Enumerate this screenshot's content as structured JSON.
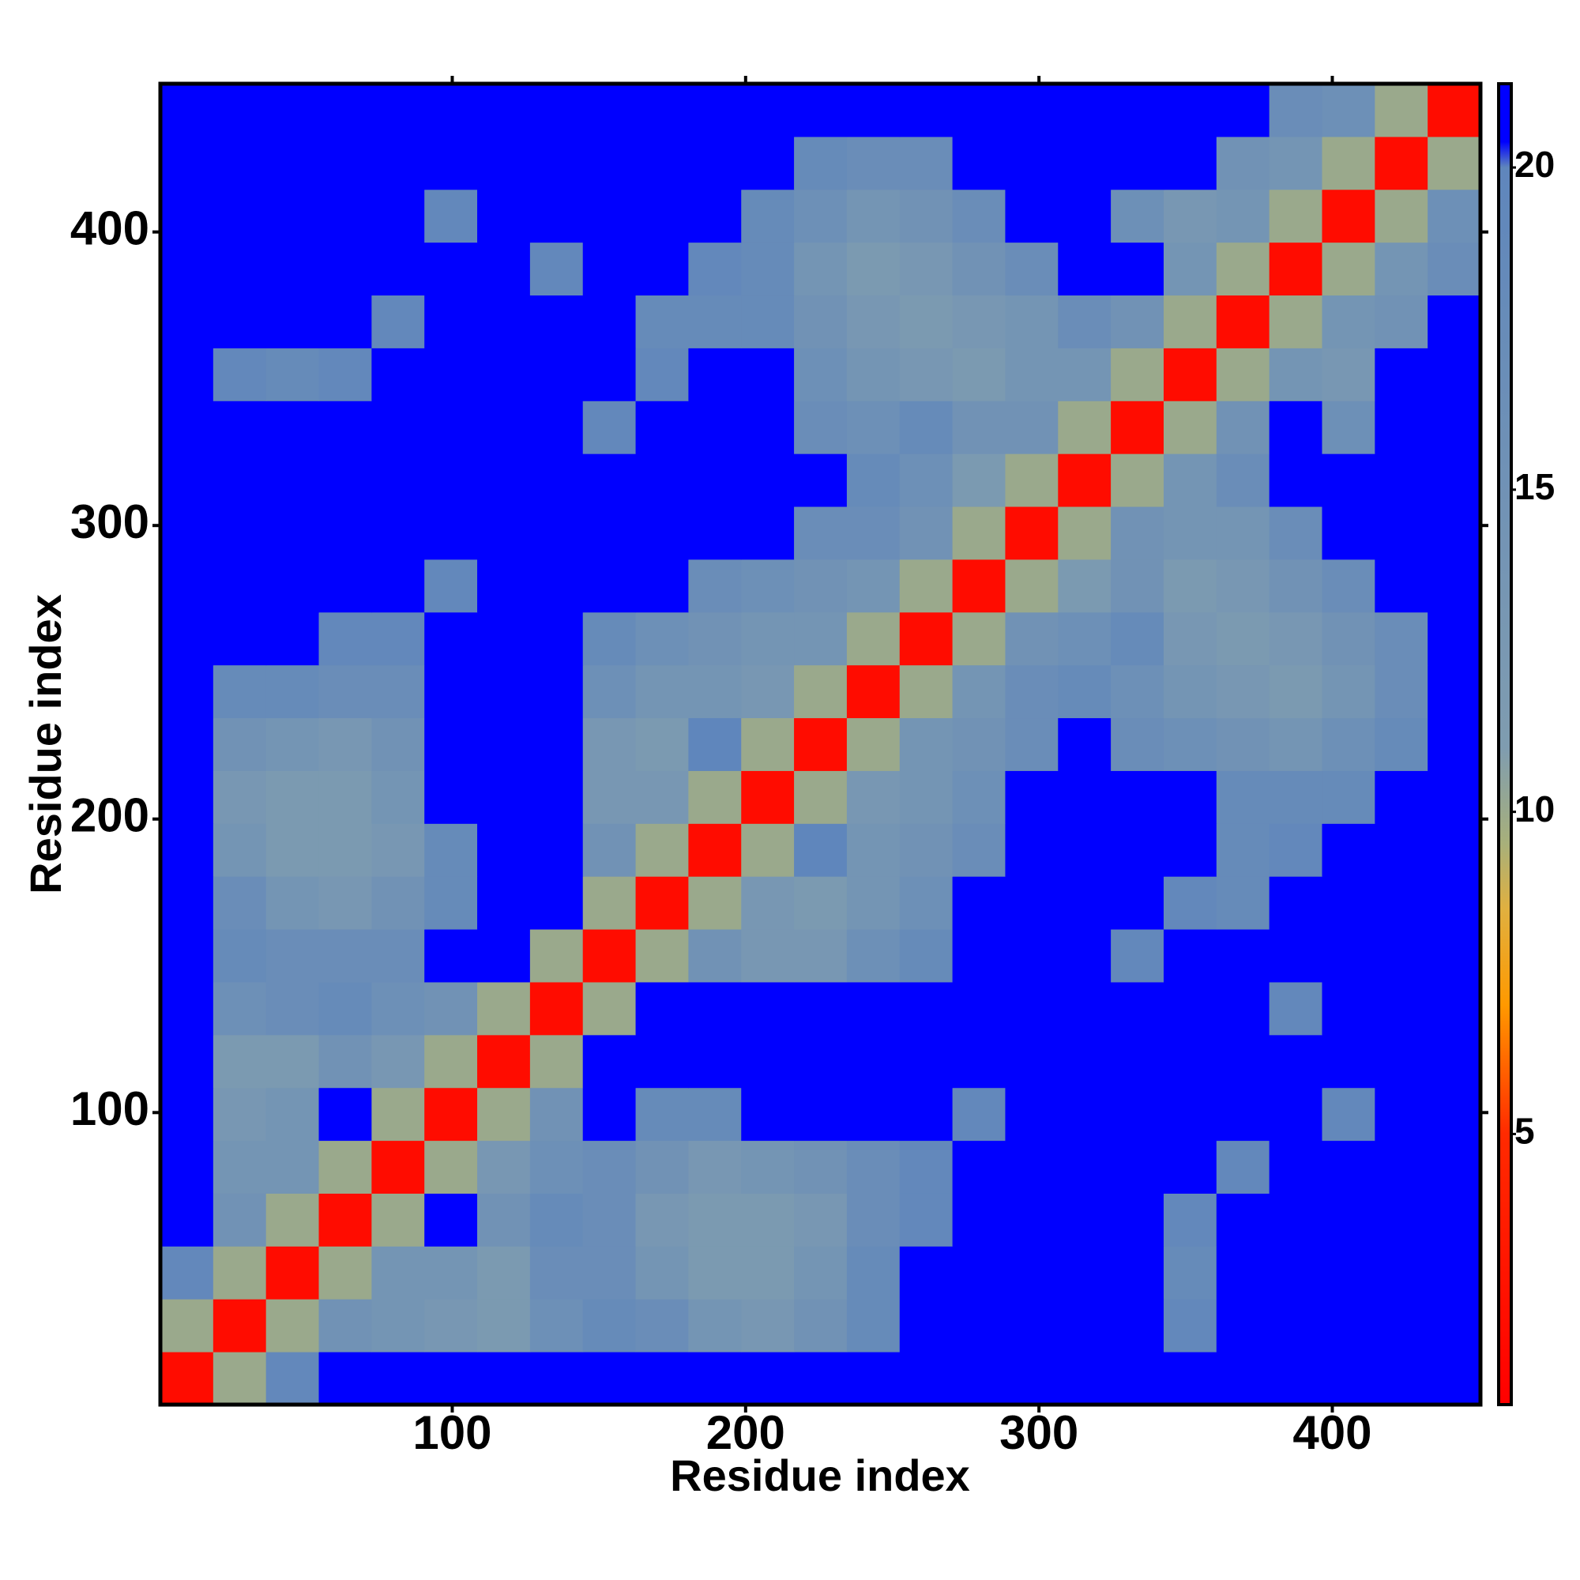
{
  "chart_data": {
    "type": "heatmap",
    "x_label": "Residue index",
    "y_label": "Residue index",
    "x": [
      9.5,
      27.5,
      45.5,
      63.5,
      81.5,
      99.5,
      117.5,
      135.5,
      153.5,
      171.5,
      189.5,
      207.5,
      225.5,
      243.5,
      261.5,
      279.5,
      297.5,
      315.5,
      333.5,
      351.5,
      369.5,
      387.5,
      405.5,
      423.5,
      441.5
    ],
    "y": [
      9.5,
      27.5,
      45.5,
      63.5,
      81.5,
      99.5,
      117.5,
      135.5,
      153.5,
      171.5,
      189.5,
      207.5,
      225.5,
      243.5,
      261.5,
      279.5,
      297.5,
      315.5,
      333.5,
      351.5,
      369.5,
      387.5,
      405.5,
      423.5,
      441.5
    ],
    "z": [
      [
        2,
        10,
        19,
        21,
        21,
        21,
        21,
        21,
        21,
        21,
        21,
        21,
        21,
        21,
        21,
        21,
        21,
        21,
        21,
        21,
        21,
        21,
        21,
        21,
        21
      ],
      [
        10,
        2,
        10,
        15,
        14,
        13,
        12,
        16,
        18,
        17,
        14,
        13,
        15,
        18,
        21,
        21,
        21,
        21,
        21,
        19,
        21,
        21,
        21,
        21,
        21
      ],
      [
        19,
        10,
        2,
        10,
        14,
        14,
        12,
        17,
        17,
        14,
        12,
        12,
        14,
        18,
        21,
        21,
        21,
        21,
        21,
        18,
        21,
        21,
        21,
        21,
        21
      ],
      [
        21,
        15,
        10,
        2,
        10,
        21,
        15,
        18,
        17,
        13,
        12,
        12,
        13,
        17,
        19,
        21,
        21,
        21,
        21,
        19,
        21,
        21,
        21,
        21,
        21
      ],
      [
        21,
        14,
        14,
        10,
        2,
        10,
        13,
        16,
        17,
        15,
        13,
        14,
        15,
        17,
        19,
        21,
        21,
        21,
        21,
        21,
        19,
        21,
        21,
        21,
        21
      ],
      [
        21,
        13,
        14,
        21,
        10,
        2,
        10,
        15,
        21,
        18,
        18,
        21,
        21,
        21,
        21,
        19,
        21,
        21,
        21,
        21,
        21,
        21,
        19,
        21,
        21
      ],
      [
        21,
        12,
        12,
        15,
        13,
        10,
        2,
        10,
        21,
        21,
        21,
        21,
        21,
        21,
        21,
        21,
        21,
        21,
        21,
        21,
        21,
        21,
        21,
        21,
        21
      ],
      [
        21,
        16,
        17,
        18,
        16,
        15,
        10,
        2,
        10,
        21,
        21,
        21,
        21,
        21,
        21,
        21,
        21,
        21,
        21,
        21,
        21,
        19,
        21,
        21,
        21
      ],
      [
        21,
        18,
        17,
        17,
        17,
        21,
        21,
        10,
        2,
        10,
        15,
        13,
        13,
        16,
        18,
        21,
        21,
        21,
        19,
        21,
        21,
        21,
        21,
        21,
        21
      ],
      [
        21,
        17,
        14,
        13,
        15,
        18,
        21,
        21,
        10,
        2,
        10,
        13,
        12,
        14,
        16,
        21,
        21,
        21,
        21,
        19,
        18,
        21,
        21,
        21,
        21
      ],
      [
        21,
        14,
        12,
        12,
        13,
        18,
        21,
        21,
        15,
        10,
        2,
        10,
        20,
        14,
        15,
        17,
        21,
        21,
        21,
        21,
        18,
        19,
        21,
        21,
        21
      ],
      [
        21,
        13,
        12,
        12,
        14,
        21,
        21,
        21,
        13,
        13,
        10,
        2,
        10,
        13,
        14,
        16,
        21,
        21,
        21,
        21,
        18,
        18,
        18,
        21,
        21
      ],
      [
        21,
        15,
        14,
        13,
        15,
        21,
        21,
        21,
        13,
        12,
        20,
        10,
        2,
        10,
        14,
        15,
        17,
        21,
        17,
        16,
        15,
        14,
        16,
        18,
        21
      ],
      [
        21,
        18,
        18,
        17,
        17,
        21,
        21,
        21,
        16,
        14,
        14,
        13,
        10,
        2,
        10,
        14,
        17,
        18,
        16,
        14,
        13,
        12,
        14,
        17,
        21
      ],
      [
        21,
        21,
        21,
        19,
        19,
        21,
        21,
        21,
        18,
        16,
        15,
        14,
        14,
        10,
        2,
        10,
        15,
        16,
        18,
        13,
        12,
        13,
        15,
        17,
        21
      ],
      [
        21,
        21,
        21,
        21,
        21,
        19,
        21,
        21,
        21,
        21,
        17,
        16,
        15,
        14,
        10,
        2,
        10,
        12,
        15,
        12,
        13,
        15,
        17,
        21,
        21
      ],
      [
        21,
        21,
        21,
        21,
        21,
        21,
        21,
        21,
        21,
        21,
        21,
        21,
        17,
        17,
        15,
        10,
        2,
        10,
        15,
        14,
        14,
        17,
        21,
        21,
        21
      ],
      [
        21,
        21,
        21,
        21,
        21,
        21,
        21,
        21,
        21,
        21,
        21,
        21,
        21,
        18,
        16,
        12,
        10,
        2,
        10,
        14,
        17,
        21,
        21,
        21,
        21
      ],
      [
        21,
        21,
        21,
        21,
        21,
        21,
        21,
        21,
        19,
        21,
        21,
        21,
        17,
        16,
        18,
        15,
        15,
        10,
        2,
        10,
        15,
        21,
        16,
        21,
        21
      ],
      [
        21,
        19,
        18,
        19,
        21,
        21,
        21,
        21,
        21,
        19,
        21,
        21,
        16,
        14,
        13,
        12,
        14,
        14,
        10,
        2,
        10,
        14,
        13,
        21,
        21
      ],
      [
        21,
        21,
        21,
        21,
        19,
        21,
        21,
        21,
        21,
        18,
        18,
        18,
        15,
        13,
        12,
        13,
        14,
        17,
        15,
        10,
        2,
        10,
        14,
        15,
        21
      ],
      [
        21,
        21,
        21,
        21,
        21,
        21,
        21,
        19,
        21,
        21,
        19,
        18,
        14,
        12,
        13,
        15,
        17,
        21,
        21,
        14,
        10,
        2,
        10,
        14,
        17
      ],
      [
        21,
        21,
        21,
        21,
        21,
        19,
        21,
        21,
        21,
        21,
        21,
        18,
        16,
        14,
        15,
        17,
        21,
        21,
        16,
        13,
        14,
        10,
        2,
        10,
        16
      ],
      [
        21,
        21,
        21,
        21,
        21,
        21,
        21,
        21,
        21,
        21,
        21,
        21,
        18,
        17,
        17,
        21,
        21,
        21,
        21,
        21,
        15,
        14,
        10,
        2,
        10
      ],
      [
        21,
        21,
        21,
        21,
        21,
        21,
        21,
        21,
        21,
        21,
        21,
        21,
        21,
        21,
        21,
        21,
        21,
        21,
        21,
        21,
        21,
        17,
        16,
        10,
        2
      ]
    ],
    "xlim": [
      0.5,
      450.5
    ],
    "ylim": [
      0.5,
      450.5
    ],
    "xticks": [
      100,
      200,
      300,
      400
    ],
    "yticks": [
      100,
      200,
      300,
      400
    ],
    "zlim": [
      0.8,
      21.3
    ],
    "zticks": [
      5,
      10,
      15,
      20
    ],
    "colorscale": [
      [
        0.8,
        "#ff0000"
      ],
      [
        5,
        "#ff2a00"
      ],
      [
        7,
        "#ff9900"
      ],
      [
        8.5,
        "#e0b040"
      ],
      [
        9.5,
        "#a8b07a"
      ],
      [
        11,
        "#7f9cb0"
      ],
      [
        20,
        "#5f86bc"
      ],
      [
        20.4,
        "#0000ff"
      ],
      [
        21.3,
        "#0000ff"
      ]
    ]
  }
}
